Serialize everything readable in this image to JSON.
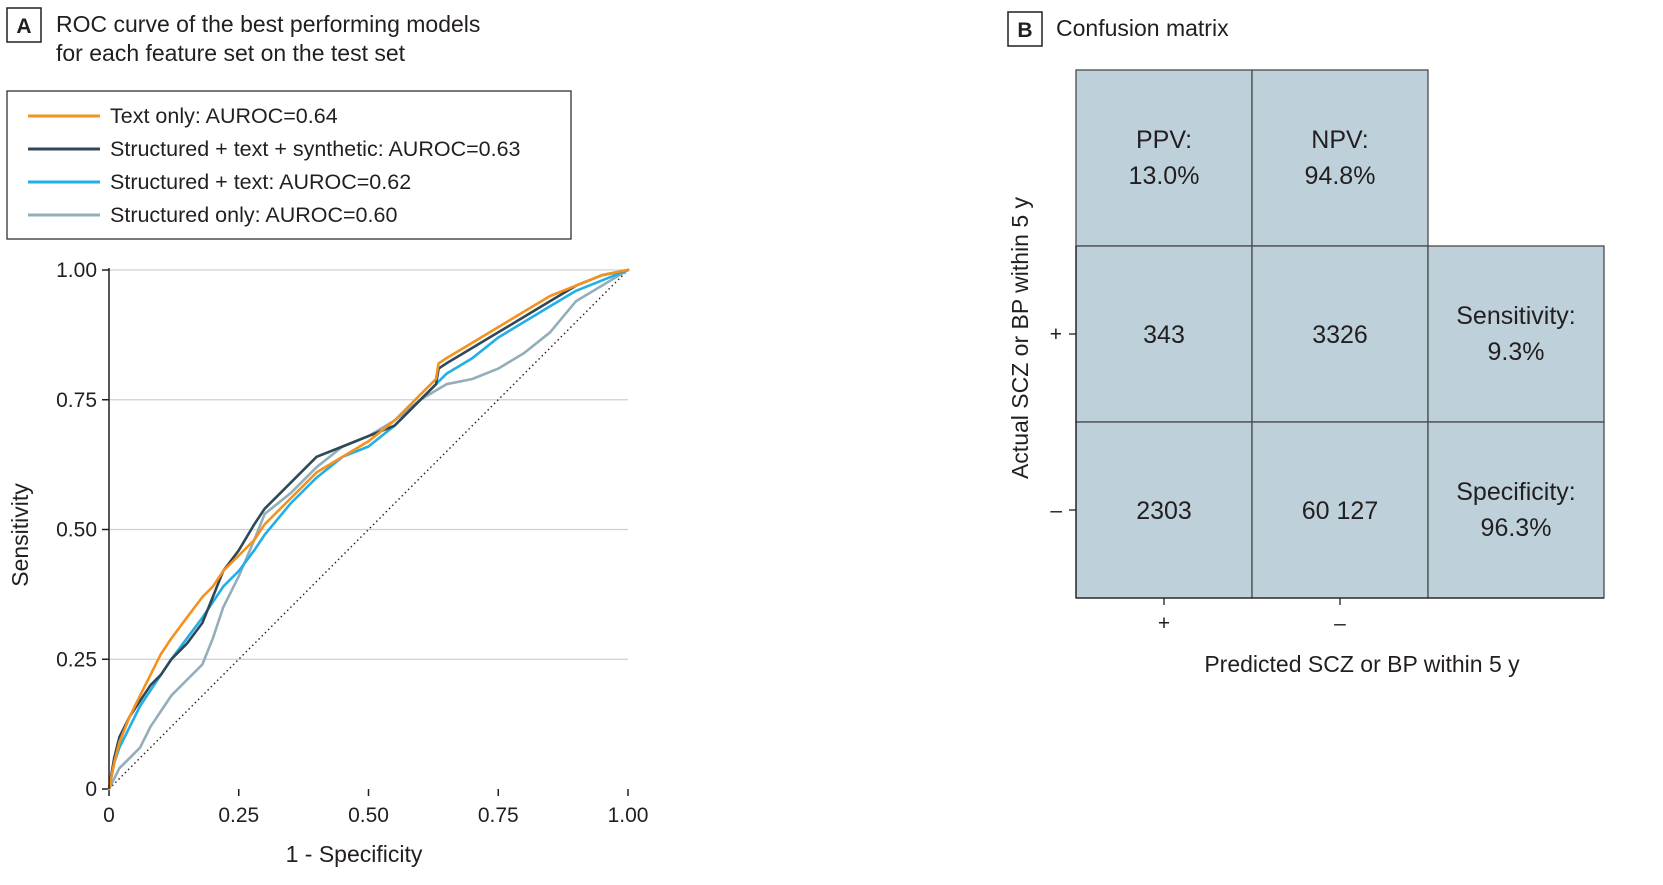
{
  "panel_a": {
    "letter": "A",
    "title_line1": "ROC curve of the best performing models",
    "title_line2": "for each feature set on the test set"
  },
  "panel_b": {
    "letter": "B",
    "title": "Confusion matrix"
  },
  "colors": {
    "text_only": "#f3921e",
    "structured_text_synthetic": "#2f4858",
    "structured_text": "#22aee6",
    "structured_only": "#93aebb",
    "grid": "#cfcfcf",
    "cell_fill": "#bed1da",
    "cell_border": "#4a4a4a"
  },
  "chart_data": [
    {
      "type": "line",
      "title": "ROC curve of the best performing models for each feature set on the test set",
      "xlabel": "1 - Specificity",
      "ylabel": "Sensitivity",
      "xlim": [
        0,
        1
      ],
      "ylim": [
        0,
        1
      ],
      "xticks": [
        "0",
        "0.25",
        "0.50",
        "0.75",
        "1.00"
      ],
      "yticks": [
        "0",
        "0.25",
        "0.50",
        "0.75",
        "1.00"
      ],
      "grid": true,
      "legend_position": "top",
      "reference_line": "diagonal (chance)",
      "series": [
        {
          "name": "Text only: AUROC=0.64",
          "x": [
            0,
            0.01,
            0.02,
            0.04,
            0.06,
            0.08,
            0.1,
            0.12,
            0.15,
            0.18,
            0.2,
            0.22,
            0.25,
            0.28,
            0.3,
            0.35,
            0.4,
            0.45,
            0.5,
            0.55,
            0.6,
            0.63,
            0.635,
            0.65,
            0.7,
            0.75,
            0.8,
            0.85,
            0.9,
            0.95,
            1.0
          ],
          "y": [
            0,
            0.05,
            0.09,
            0.14,
            0.18,
            0.22,
            0.26,
            0.29,
            0.33,
            0.37,
            0.39,
            0.42,
            0.45,
            0.48,
            0.51,
            0.56,
            0.61,
            0.64,
            0.67,
            0.71,
            0.76,
            0.79,
            0.82,
            0.83,
            0.86,
            0.89,
            0.92,
            0.95,
            0.97,
            0.99,
            1.0
          ]
        },
        {
          "name": "Structured + text + synthetic: AUROC=0.63",
          "x": [
            0,
            0.01,
            0.02,
            0.04,
            0.06,
            0.08,
            0.1,
            0.12,
            0.15,
            0.18,
            0.2,
            0.22,
            0.25,
            0.28,
            0.3,
            0.35,
            0.4,
            0.45,
            0.5,
            0.55,
            0.6,
            0.63,
            0.635,
            0.65,
            0.7,
            0.75,
            0.8,
            0.85,
            0.9,
            0.95,
            1.0
          ],
          "y": [
            0,
            0.06,
            0.1,
            0.14,
            0.17,
            0.2,
            0.22,
            0.25,
            0.28,
            0.32,
            0.37,
            0.42,
            0.46,
            0.51,
            0.54,
            0.59,
            0.64,
            0.66,
            0.68,
            0.7,
            0.75,
            0.78,
            0.81,
            0.82,
            0.85,
            0.88,
            0.91,
            0.94,
            0.97,
            0.99,
            1.0
          ]
        },
        {
          "name": "Structured + text: AUROC=0.62",
          "x": [
            0,
            0.01,
            0.02,
            0.04,
            0.06,
            0.08,
            0.1,
            0.12,
            0.15,
            0.18,
            0.2,
            0.22,
            0.25,
            0.28,
            0.3,
            0.35,
            0.4,
            0.45,
            0.5,
            0.55,
            0.6,
            0.63,
            0.65,
            0.7,
            0.75,
            0.8,
            0.85,
            0.9,
            0.95,
            1.0
          ],
          "y": [
            0,
            0.05,
            0.08,
            0.12,
            0.16,
            0.19,
            0.22,
            0.25,
            0.29,
            0.33,
            0.36,
            0.39,
            0.42,
            0.46,
            0.49,
            0.55,
            0.6,
            0.64,
            0.66,
            0.7,
            0.75,
            0.78,
            0.8,
            0.83,
            0.87,
            0.9,
            0.93,
            0.96,
            0.98,
            1.0
          ]
        },
        {
          "name": "Structured only: AUROC=0.60",
          "x": [
            0,
            0.01,
            0.02,
            0.04,
            0.06,
            0.08,
            0.1,
            0.12,
            0.15,
            0.18,
            0.2,
            0.22,
            0.25,
            0.28,
            0.3,
            0.35,
            0.4,
            0.45,
            0.5,
            0.55,
            0.6,
            0.65,
            0.7,
            0.75,
            0.8,
            0.85,
            0.9,
            0.95,
            1.0
          ],
          "y": [
            0,
            0.02,
            0.04,
            0.06,
            0.08,
            0.12,
            0.15,
            0.18,
            0.21,
            0.24,
            0.29,
            0.35,
            0.41,
            0.48,
            0.53,
            0.57,
            0.62,
            0.66,
            0.68,
            0.71,
            0.75,
            0.78,
            0.79,
            0.81,
            0.84,
            0.88,
            0.94,
            0.97,
            1.0
          ]
        }
      ]
    },
    {
      "type": "table",
      "title": "Confusion matrix",
      "xlabel": "Predicted SCZ or BP within 5 y",
      "ylabel": "Actual SCZ or BP within 5 y",
      "column_ticks": [
        "+",
        "–"
      ],
      "row_ticks": [
        "+",
        "–"
      ],
      "top_row": [
        {
          "label": "PPV:",
          "value": "13.0%"
        },
        {
          "label": "NPV:",
          "value": "94.8%"
        }
      ],
      "matrix": [
        [
          "343",
          "3326"
        ],
        [
          "2303",
          "60 127"
        ]
      ],
      "right_column": [
        {
          "label": "Sensitivity:",
          "value": "9.3%"
        },
        {
          "label": "Specificity:",
          "value": "96.3%"
        }
      ]
    }
  ]
}
